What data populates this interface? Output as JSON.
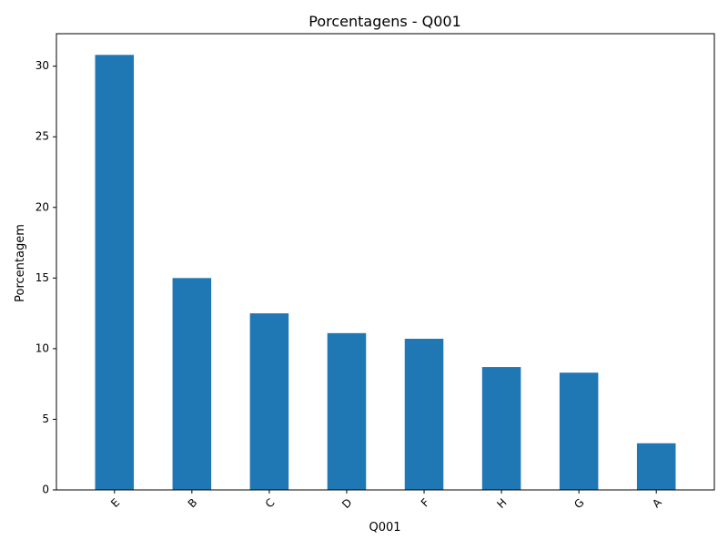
{
  "chart_data": {
    "type": "bar",
    "title": "Porcentagens - Q001",
    "xlabel": "Q001",
    "ylabel": "Porcentagem",
    "categories": [
      "E",
      "B",
      "C",
      "D",
      "F",
      "H",
      "G",
      "A"
    ],
    "values": [
      30.8,
      15.0,
      12.5,
      11.1,
      10.7,
      8.7,
      8.3,
      3.3
    ],
    "ylim": [
      0,
      32.3
    ],
    "yticks": [
      0,
      5,
      10,
      15,
      20,
      25,
      30
    ],
    "grid": false,
    "legend": "none",
    "bar_color": "#1f77b4"
  }
}
